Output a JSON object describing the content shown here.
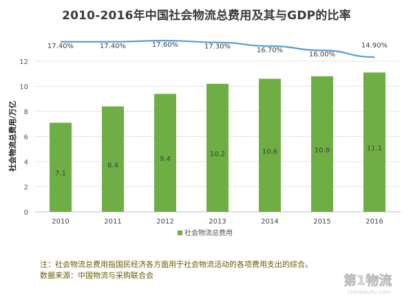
{
  "chart_data": {
    "type": "bar+line",
    "title": "2010-2016年中国社会物流总费用及其与GDP的比率",
    "ylabel": "社会物流总费用/万亿",
    "ylim": [
      0,
      12
    ],
    "yticks": [
      0,
      2,
      4,
      6,
      8,
      10,
      12
    ],
    "grid": true,
    "legend_position": "bottom",
    "categories": [
      "2010",
      "2011",
      "2012",
      "2013",
      "2014",
      "2015",
      "2016"
    ],
    "series": [
      {
        "name": "社会物流总费用",
        "type": "bar",
        "color": "#6fae45",
        "values": [
          7.1,
          8.4,
          9.4,
          10.2,
          10.6,
          10.8,
          11.1
        ],
        "labels": [
          "7.1",
          "8.4",
          "9.4",
          "10.2",
          "10.6",
          "10.8",
          "11.1"
        ]
      },
      {
        "type": "line",
        "color": "#5b9bd5",
        "values": [
          17.4,
          17.4,
          17.6,
          17.3,
          16.7,
          16.0,
          14.9
        ],
        "labels": [
          "17.40%",
          "17.40%",
          "17.60%",
          "17.30%",
          "16.70%",
          "16.00%",
          "14.90%"
        ],
        "ylim": [
          0,
          18
        ]
      }
    ]
  },
  "footnote": {
    "note": "注：社会物流总费用指国民经济各方面用于社会物流活动的各项费用支出的综合。",
    "source": "数据来源：中国物流与采购联合会"
  },
  "watermark": {
    "text": "第1物流",
    "sub": "chinawuliu.com"
  }
}
